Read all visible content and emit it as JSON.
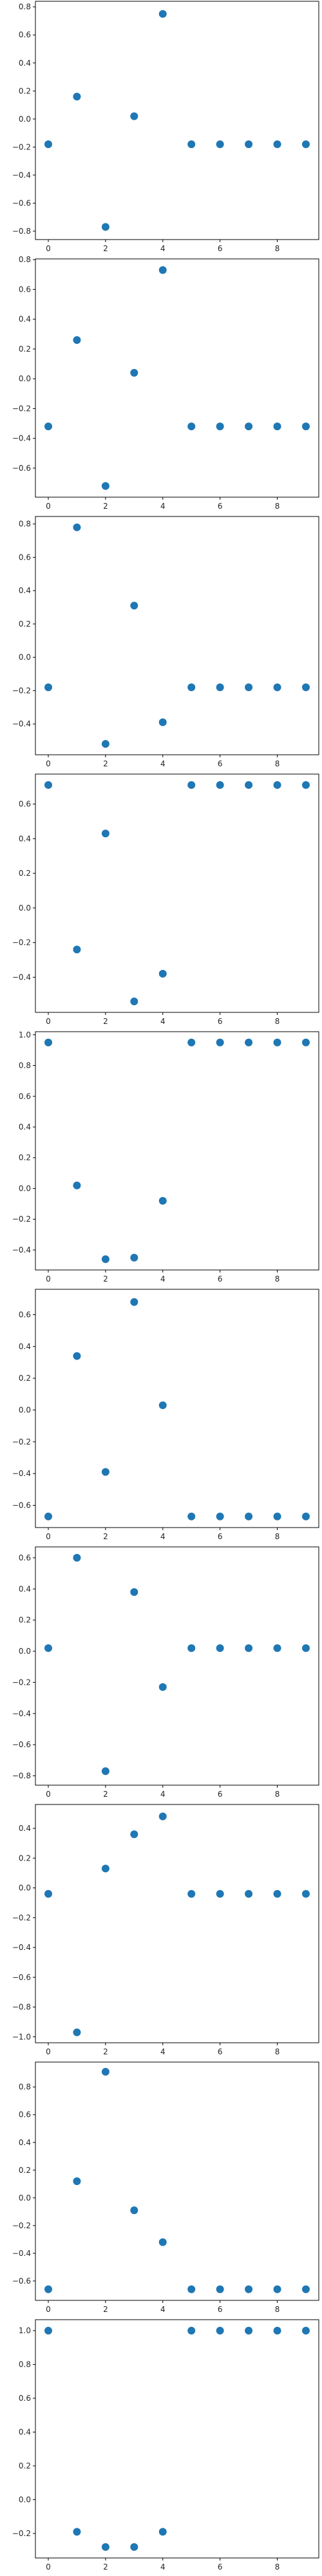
{
  "chart_data": [
    {
      "type": "scatter",
      "x": [
        0,
        1,
        2,
        3,
        4,
        5,
        6,
        7,
        8,
        9
      ],
      "y": [
        -0.18,
        0.16,
        -0.77,
        0.02,
        0.75,
        -0.18,
        -0.18,
        -0.18,
        -0.18,
        -0.18
      ],
      "xlim": [
        -0.45,
        9.45
      ],
      "ylim": [
        -0.86,
        0.84
      ],
      "xticks": [
        0,
        2,
        4,
        6,
        8
      ],
      "yticks": [
        -0.8,
        -0.6,
        -0.4,
        -0.2,
        0.0,
        0.2,
        0.4,
        0.6,
        0.8
      ],
      "ytick_labels": [
        "−0.8",
        "−0.6",
        "−0.4",
        "−0.2",
        "0.0",
        "0.2",
        "0.4",
        "0.6",
        "0.8"
      ],
      "marker_color": "#1f77b4",
      "grid": false
    },
    {
      "type": "scatter",
      "x": [
        0,
        1,
        2,
        3,
        4,
        5,
        6,
        7,
        8,
        9
      ],
      "y": [
        -0.32,
        0.26,
        -0.72,
        0.04,
        0.73,
        -0.32,
        -0.32,
        -0.32,
        -0.32,
        -0.32
      ],
      "xlim": [
        -0.45,
        9.45
      ],
      "ylim": [
        -0.795,
        0.805
      ],
      "xticks": [
        0,
        2,
        4,
        6,
        8
      ],
      "yticks": [
        -0.6,
        -0.4,
        -0.2,
        0.0,
        0.2,
        0.4,
        0.6,
        0.8
      ],
      "ytick_labels": [
        "−0.6",
        "−0.4",
        "−0.2",
        "0.0",
        "0.2",
        "0.4",
        "0.6",
        "0.8"
      ],
      "marker_color": "#1f77b4",
      "grid": false
    },
    {
      "type": "scatter",
      "x": [
        0,
        1,
        2,
        3,
        4,
        5,
        6,
        7,
        8,
        9
      ],
      "y": [
        -0.18,
        0.78,
        -0.52,
        0.31,
        -0.39,
        -0.18,
        -0.18,
        -0.18,
        -0.18,
        -0.18
      ],
      "xlim": [
        -0.45,
        9.45
      ],
      "ylim": [
        -0.585,
        0.845
      ],
      "xticks": [
        0,
        2,
        4,
        6,
        8
      ],
      "yticks": [
        -0.4,
        -0.2,
        0.0,
        0.2,
        0.4,
        0.6,
        0.8
      ],
      "ytick_labels": [
        "−0.4",
        "−0.2",
        "0.0",
        "0.2",
        "0.4",
        "0.6",
        "0.8"
      ],
      "marker_color": "#1f77b4",
      "grid": false
    },
    {
      "type": "scatter",
      "x": [
        0,
        1,
        2,
        3,
        4,
        5,
        6,
        7,
        8,
        9
      ],
      "y": [
        0.71,
        -0.24,
        0.43,
        -0.54,
        -0.38,
        0.71,
        0.71,
        0.71,
        0.71,
        0.71
      ],
      "xlim": [
        -0.45,
        9.45
      ],
      "ylim": [
        -0.603,
        0.773
      ],
      "xticks": [
        0,
        2,
        4,
        6,
        8
      ],
      "yticks": [
        -0.4,
        -0.2,
        0.0,
        0.2,
        0.4,
        0.6
      ],
      "ytick_labels": [
        "−0.4",
        "−0.2",
        "0.0",
        "0.2",
        "0.4",
        "0.6"
      ],
      "marker_color": "#1f77b4",
      "grid": false
    },
    {
      "type": "scatter",
      "x": [
        0,
        1,
        2,
        3,
        4,
        5,
        6,
        7,
        8,
        9
      ],
      "y": [
        0.95,
        0.02,
        -0.46,
        -0.45,
        -0.08,
        0.95,
        0.95,
        0.95,
        0.95,
        0.95
      ],
      "xlim": [
        -0.45,
        9.45
      ],
      "ylim": [
        -0.53,
        1.02
      ],
      "xticks": [
        0,
        2,
        4,
        6,
        8
      ],
      "yticks": [
        -0.4,
        -0.2,
        0.0,
        0.2,
        0.4,
        0.6,
        0.8,
        1.0
      ],
      "ytick_labels": [
        "−0.4",
        "−0.2",
        "0.0",
        "0.2",
        "0.4",
        "0.6",
        "0.8",
        "1.0"
      ],
      "marker_color": "#1f77b4",
      "grid": false
    },
    {
      "type": "scatter",
      "x": [
        0,
        1,
        2,
        3,
        4,
        5,
        6,
        7,
        8,
        9
      ],
      "y": [
        -0.67,
        0.34,
        -0.39,
        0.68,
        0.03,
        -0.67,
        -0.67,
        -0.67,
        -0.67,
        -0.67
      ],
      "xlim": [
        -0.45,
        9.45
      ],
      "ylim": [
        -0.74,
        0.76
      ],
      "xticks": [
        0,
        2,
        4,
        6,
        8
      ],
      "yticks": [
        -0.6,
        -0.4,
        -0.2,
        0.0,
        0.2,
        0.4,
        0.6
      ],
      "ytick_labels": [
        "−0.6",
        "−0.4",
        "−0.2",
        "0.0",
        "0.2",
        "0.4",
        "0.6"
      ],
      "marker_color": "#1f77b4",
      "grid": false
    },
    {
      "type": "scatter",
      "x": [
        0,
        1,
        2,
        3,
        4,
        5,
        6,
        7,
        8,
        9
      ],
      "y": [
        0.02,
        0.6,
        -0.77,
        0.38,
        -0.23,
        0.02,
        0.02,
        0.02,
        0.02,
        0.02
      ],
      "xlim": [
        -0.45,
        9.45
      ],
      "ylim": [
        -0.86,
        0.67
      ],
      "xticks": [
        0,
        2,
        4,
        6,
        8
      ],
      "yticks": [
        -0.8,
        -0.6,
        -0.4,
        -0.2,
        0.0,
        0.2,
        0.4,
        0.6
      ],
      "ytick_labels": [
        "−0.8",
        "−0.6",
        "−0.4",
        "−0.2",
        "0.0",
        "0.2",
        "0.4",
        "0.6"
      ],
      "marker_color": "#1f77b4",
      "grid": false
    },
    {
      "type": "scatter",
      "x": [
        0,
        1,
        2,
        3,
        4,
        5,
        6,
        7,
        8,
        9
      ],
      "y": [
        -0.04,
        -0.97,
        0.13,
        0.36,
        0.48,
        -0.04,
        -0.04,
        -0.04,
        -0.04,
        -0.04
      ],
      "xlim": [
        -0.45,
        9.45
      ],
      "ylim": [
        -1.04,
        0.56
      ],
      "xticks": [
        0,
        2,
        4,
        6,
        8
      ],
      "yticks": [
        -1.0,
        -0.8,
        -0.6,
        -0.4,
        -0.2,
        0.0,
        0.2,
        0.4
      ],
      "ytick_labels": [
        "−1.0",
        "−0.8",
        "−0.6",
        "−0.4",
        "−0.2",
        "0.0",
        "0.2",
        "0.4"
      ],
      "marker_color": "#1f77b4",
      "grid": false
    },
    {
      "type": "scatter",
      "x": [
        0,
        1,
        2,
        3,
        4,
        5,
        6,
        7,
        8,
        9
      ],
      "y": [
        -0.66,
        0.12,
        0.91,
        -0.09,
        -0.32,
        -0.66,
        -0.66,
        -0.66,
        -0.66,
        -0.66
      ],
      "xlim": [
        -0.45,
        9.45
      ],
      "ylim": [
        -0.74,
        0.98
      ],
      "xticks": [
        0,
        2,
        4,
        6,
        8
      ],
      "yticks": [
        -0.6,
        -0.4,
        -0.2,
        0.0,
        0.2,
        0.4,
        0.6,
        0.8
      ],
      "ytick_labels": [
        "−0.6",
        "−0.4",
        "−0.2",
        "0.0",
        "0.2",
        "0.4",
        "0.6",
        "0.8"
      ],
      "marker_color": "#1f77b4",
      "grid": false
    },
    {
      "type": "scatter",
      "x": [
        0,
        1,
        2,
        3,
        4,
        5,
        6,
        7,
        8,
        9
      ],
      "y": [
        1.0,
        -0.19,
        -0.28,
        -0.28,
        -0.19,
        1.0,
        1.0,
        1.0,
        1.0,
        1.0
      ],
      "xlim": [
        -0.45,
        9.45
      ],
      "ylim": [
        -0.345,
        1.065
      ],
      "xticks": [
        0,
        2,
        4,
        6,
        8
      ],
      "yticks": [
        -0.2,
        0.0,
        0.2,
        0.4,
        0.6,
        0.8,
        1.0
      ],
      "ytick_labels": [
        "−0.2",
        "0.0",
        "0.2",
        "0.4",
        "0.6",
        "0.8",
        "1.0"
      ],
      "marker_color": "#1f77b4",
      "grid": false
    }
  ]
}
